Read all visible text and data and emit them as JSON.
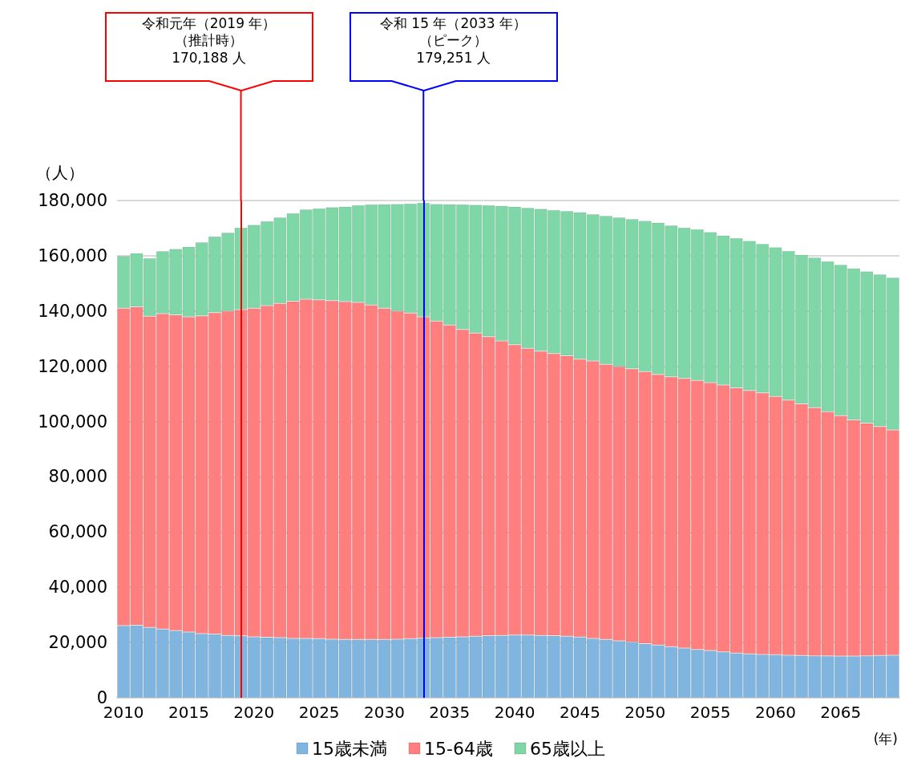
{
  "chart_data": {
    "type": "bar",
    "stacked": true,
    "x": [
      2010,
      2011,
      2012,
      2013,
      2014,
      2015,
      2016,
      2017,
      2018,
      2019,
      2020,
      2021,
      2022,
      2023,
      2024,
      2025,
      2026,
      2027,
      2028,
      2029,
      2030,
      2031,
      2032,
      2033,
      2034,
      2035,
      2036,
      2037,
      2038,
      2039,
      2040,
      2041,
      2042,
      2043,
      2044,
      2045,
      2046,
      2047,
      2048,
      2049,
      2050,
      2051,
      2052,
      2053,
      2054,
      2055,
      2056,
      2057,
      2058,
      2059,
      2060,
      2061,
      2062,
      2063,
      2064,
      2065,
      2066,
      2067,
      2068,
      2069
    ],
    "xlim": [
      2009.5,
      2069.5
    ],
    "xticks": [
      2010,
      2015,
      2020,
      2025,
      2030,
      2035,
      2040,
      2045,
      2050,
      2055,
      2060,
      2065
    ],
    "ylim": [
      0,
      180000
    ],
    "yticks": [
      0,
      {
        "value": 20000,
        "label": "20,000"
      },
      {
        "value": 40000,
        "label": "40,000"
      },
      {
        "value": 60000,
        "label": "60,000"
      },
      {
        "value": 80000,
        "label": "80,000"
      },
      {
        "value": 100000,
        "label": "100,000"
      },
      {
        "value": 120000,
        "label": "120,000"
      },
      {
        "value": 140000,
        "label": "140,000"
      },
      {
        "value": 160000,
        "label": "160,000"
      },
      {
        "value": 180000,
        "label": "180,000"
      }
    ],
    "ylabel": "（人）",
    "xlabel": "(年)",
    "grid": "y",
    "legend": "bottom",
    "series": [
      {
        "name": "15歳未満",
        "color": "#7fb5de",
        "values": [
          26100,
          26300,
          25500,
          24900,
          24300,
          23800,
          23200,
          23100,
          22600,
          22400,
          22100,
          21900,
          21800,
          21500,
          21500,
          21400,
          21200,
          21100,
          21100,
          21100,
          21100,
          21200,
          21400,
          21600,
          21800,
          21900,
          22100,
          22300,
          22500,
          22600,
          22700,
          22700,
          22600,
          22500,
          22300,
          22000,
          21500,
          21100,
          20600,
          20200,
          19600,
          19100,
          18500,
          18000,
          17500,
          17100,
          16600,
          16200,
          15900,
          15700,
          15600,
          15400,
          15300,
          15200,
          15200,
          15100,
          15100,
          15200,
          15300,
          15400
        ]
      },
      {
        "name": "15-64歳",
        "color": "#ff7f7f",
        "values": [
          114900,
          115200,
          112600,
          114200,
          114300,
          114100,
          115100,
          116300,
          117400,
          118100,
          118900,
          120100,
          121000,
          122100,
          122800,
          122700,
          122600,
          122300,
          122000,
          121100,
          119900,
          118800,
          117900,
          116300,
          114600,
          113000,
          111200,
          109700,
          108200,
          106600,
          105100,
          103800,
          102900,
          102100,
          101500,
          100600,
          100400,
          99600,
          99300,
          98900,
          98500,
          98000,
          97700,
          97600,
          97400,
          97000,
          96600,
          96000,
          95400,
          94700,
          93500,
          92400,
          91100,
          89800,
          88400,
          87000,
          85500,
          84200,
          82900,
          81600
        ]
      },
      {
        "name": "65歳以上",
        "color": "#7fd6a6",
        "values": [
          18900,
          19500,
          21100,
          22600,
          23900,
          25400,
          26600,
          27600,
          28400,
          29700,
          30200,
          30500,
          31100,
          31800,
          32500,
          33100,
          33800,
          34400,
          35200,
          36400,
          37700,
          38800,
          39600,
          41300,
          42400,
          43800,
          45300,
          46500,
          47600,
          48900,
          50000,
          50900,
          51500,
          52000,
          52400,
          53200,
          53200,
          53800,
          54000,
          54200,
          54600,
          54900,
          54800,
          54600,
          54700,
          54500,
          54200,
          54200,
          54100,
          53900,
          54000,
          54000,
          54000,
          54400,
          54400,
          54700,
          54900,
          55000,
          55100,
          55100
        ]
      }
    ],
    "ref_lines": [
      {
        "axis": "x",
        "value": 2019,
        "color": "#ff0000"
      },
      {
        "axis": "x",
        "value": 2033,
        "color": "#0000ff"
      }
    ],
    "annotations": [
      "令和元年（2019 年）",
      "（推計時）",
      "170,188 人",
      "令和 15 年（2033 年）",
      "（ピーク）",
      "179,251 人"
    ]
  }
}
